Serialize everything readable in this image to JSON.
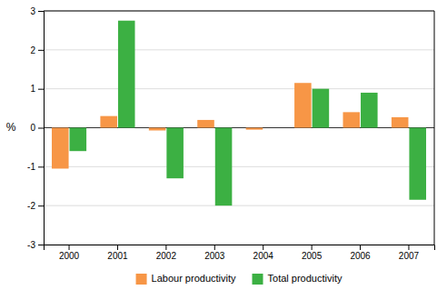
{
  "chart_data": {
    "type": "bar",
    "categories": [
      "2000",
      "2001",
      "2002",
      "2003",
      "2004",
      "2005",
      "2006",
      "2007"
    ],
    "series": [
      {
        "name": "Labour productivity",
        "color": "#f79646",
        "values": [
          -1.05,
          0.3,
          -0.07,
          0.2,
          -0.05,
          1.15,
          0.4,
          0.27
        ]
      },
      {
        "name": "Total productivity",
        "color": "#3cb043",
        "values": [
          -0.6,
          2.75,
          -1.3,
          -2.0,
          0.0,
          1.0,
          0.9,
          -1.85
        ]
      }
    ],
    "y_label": "%",
    "ylim": [
      -3,
      3
    ],
    "yticks": [
      -3,
      -2,
      -1,
      0,
      1,
      2,
      3
    ],
    "grid": true,
    "legend": "bottom"
  }
}
